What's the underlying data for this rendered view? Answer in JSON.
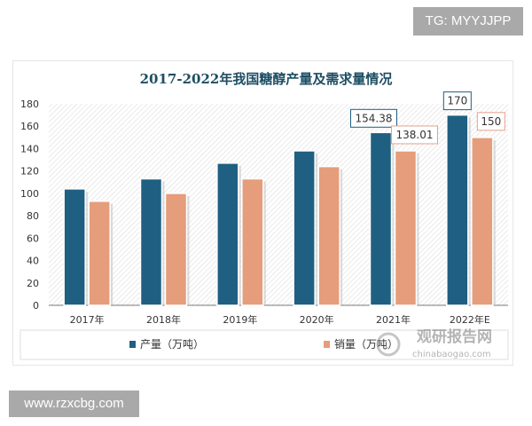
{
  "watermark_top": "TG: MYYJJPP",
  "watermark_bottom": "www.rzxcbg.com",
  "logo": {
    "cn": "观研报告网",
    "en": "chinabaogao.com"
  },
  "chart_data": {
    "type": "bar",
    "title": "2017-2022年我国糖醇产量及需求量情况",
    "categories": [
      "2017年",
      "2018年",
      "2019年",
      "2020年",
      "2021年",
      "2022年E"
    ],
    "series": [
      {
        "name": "产量（万吨）",
        "color": "#1f5f82",
        "values": [
          104,
          113,
          127,
          138,
          154.38,
          170
        ]
      },
      {
        "name": "销量（万吨）",
        "color": "#e59d7c",
        "values": [
          93,
          100,
          113,
          124,
          138.01,
          150
        ]
      }
    ],
    "data_labels": [
      {
        "category": "2021年",
        "series": "产量（万吨）",
        "text": "154.38"
      },
      {
        "category": "2021年",
        "series": "销量（万吨）",
        "text": "138.01"
      },
      {
        "category": "2022年E",
        "series": "产量（万吨）",
        "text": "170"
      },
      {
        "category": "2022年E",
        "series": "销量（万吨）",
        "text": "150"
      }
    ],
    "ylim": [
      0,
      180
    ],
    "yticks": [
      0,
      20,
      40,
      60,
      80,
      100,
      120,
      140,
      160,
      180
    ],
    "legend": "bottom",
    "grid": false
  }
}
